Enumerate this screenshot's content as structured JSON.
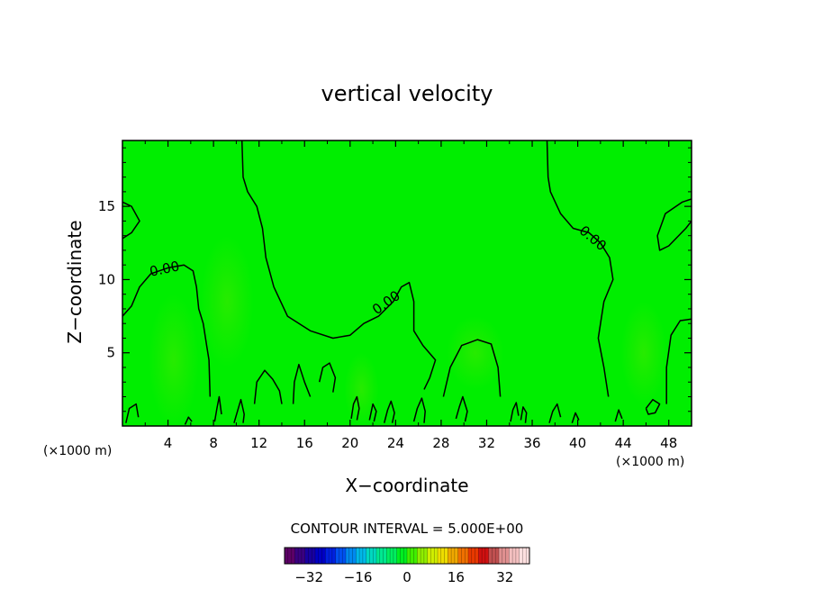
{
  "chart_data": {
    "type": "contour",
    "title": "vertical velocity",
    "xlabel": "X−coordinate",
    "ylabel": "Z−coordinate",
    "x_unit": "(×1000 m)",
    "z_unit": "(×1000 m)",
    "xlim": [
      0,
      50
    ],
    "ylim": [
      0,
      19.5
    ],
    "x_ticks": [
      4,
      8,
      12,
      16,
      20,
      24,
      28,
      32,
      36,
      40,
      44,
      48
    ],
    "x_tick_labels": [
      "4",
      "8",
      "12",
      "16",
      "20",
      "24",
      "28",
      "32",
      "36",
      "40",
      "44",
      "48"
    ],
    "y_ticks": [
      5,
      10,
      15
    ],
    "y_tick_labels": [
      "5",
      "10",
      "15"
    ],
    "field_color": "#00ee00",
    "contour_interval_text": "CONTOUR INTERVAL = 5.000E+00",
    "contour_level_label": "0.00",
    "contour_labels": [
      {
        "text": "0.00",
        "x": 3.7,
        "z": 10.7
      },
      {
        "text": "0.00",
        "x": 23.2,
        "z": 8.4
      },
      {
        "text": "0.00",
        "x": 41.3,
        "z": 12.8
      }
    ],
    "zero_contours": [
      [
        [
          0,
          7.5
        ],
        [
          0.8,
          8.2
        ],
        [
          1.5,
          9.5
        ],
        [
          2.5,
          10.4
        ],
        [
          4.0,
          10.8
        ],
        [
          5.4,
          11.0
        ],
        [
          6.2,
          10.6
        ],
        [
          6.5,
          9.5
        ],
        [
          6.7,
          8.0
        ],
        [
          7.1,
          7.0
        ],
        [
          7.4,
          5.5
        ],
        [
          7.6,
          4.5
        ],
        [
          7.7,
          2.0
        ]
      ],
      [
        [
          10.5,
          19.5
        ],
        [
          10.6,
          17.0
        ],
        [
          11.0,
          16.0
        ],
        [
          11.8,
          15.0
        ],
        [
          12.3,
          13.5
        ],
        [
          12.6,
          11.5
        ],
        [
          13.3,
          9.5
        ],
        [
          14.5,
          7.5
        ],
        [
          16.5,
          6.5
        ],
        [
          18.5,
          6.0
        ],
        [
          20.0,
          6.2
        ],
        [
          21.2,
          7.0
        ],
        [
          22.5,
          7.5
        ],
        [
          23.8,
          8.5
        ],
        [
          24.5,
          9.5
        ],
        [
          25.2,
          9.8
        ],
        [
          25.6,
          8.5
        ],
        [
          25.6,
          6.5
        ],
        [
          26.4,
          5.5
        ],
        [
          27.5,
          4.5
        ],
        [
          27.0,
          3.3
        ],
        [
          26.5,
          2.5
        ]
      ],
      [
        [
          37.3,
          19.5
        ],
        [
          37.4,
          17.0
        ],
        [
          37.6,
          16.0
        ],
        [
          38.5,
          14.5
        ],
        [
          39.6,
          13.5
        ],
        [
          41.0,
          13.2
        ],
        [
          42.0,
          12.5
        ],
        [
          42.8,
          11.5
        ],
        [
          43.1,
          10.0
        ],
        [
          42.3,
          8.5
        ],
        [
          41.8,
          6.0
        ],
        [
          42.3,
          4.0
        ],
        [
          42.7,
          2.0
        ]
      ],
      [
        [
          50,
          15.5
        ],
        [
          49.2,
          15.3
        ],
        [
          47.7,
          14.5
        ],
        [
          47.0,
          13.0
        ],
        [
          47.2,
          12.0
        ],
        [
          48.0,
          12.3
        ],
        [
          49.5,
          13.5
        ],
        [
          50,
          14.0
        ]
      ],
      [
        [
          0,
          15.3
        ],
        [
          0.8,
          15.0
        ],
        [
          1.5,
          14.0
        ],
        [
          0.8,
          13.2
        ],
        [
          0,
          12.8
        ]
      ],
      [
        [
          50,
          7.3
        ],
        [
          49.0,
          7.2
        ],
        [
          48.2,
          6.2
        ],
        [
          47.8,
          4.0
        ],
        [
          47.8,
          1.5
        ]
      ],
      [
        [
          28.2,
          2.0
        ],
        [
          28.8,
          4.0
        ],
        [
          29.8,
          5.5
        ],
        [
          31.2,
          5.9
        ],
        [
          32.4,
          5.6
        ],
        [
          33.0,
          4.0
        ],
        [
          33.2,
          2.0
        ]
      ],
      [
        [
          15.0,
          1.5
        ],
        [
          15.1,
          3.0
        ],
        [
          15.5,
          4.2
        ],
        [
          16.0,
          3.0
        ],
        [
          16.5,
          2.0
        ]
      ],
      [
        [
          17.3,
          3.0
        ],
        [
          17.6,
          4.0
        ],
        [
          18.2,
          4.3
        ],
        [
          18.7,
          3.3
        ],
        [
          18.5,
          2.3
        ]
      ],
      [
        [
          11.6,
          1.5
        ],
        [
          11.8,
          3.0
        ],
        [
          12.5,
          3.8
        ],
        [
          13.2,
          3.2
        ],
        [
          13.8,
          2.4
        ],
        [
          14.0,
          1.5
        ]
      ],
      [
        [
          0.3,
          0.2
        ],
        [
          0.6,
          1.2
        ],
        [
          1.2,
          1.5
        ],
        [
          1.4,
          0.6
        ]
      ],
      [
        [
          8.1,
          0.3
        ],
        [
          8.3,
          1.2
        ],
        [
          8.5,
          2.0
        ],
        [
          8.7,
          0.8
        ]
      ],
      [
        [
          9.8,
          0.2
        ],
        [
          10.1,
          1.0
        ],
        [
          10.4,
          1.8
        ],
        [
          10.7,
          0.8
        ],
        [
          10.6,
          0.2
        ]
      ],
      [
        [
          20.1,
          0.5
        ],
        [
          20.3,
          1.5
        ],
        [
          20.6,
          2.0
        ],
        [
          20.8,
          1.2
        ],
        [
          20.6,
          0.4
        ]
      ],
      [
        [
          21.7,
          0.4
        ],
        [
          22.0,
          1.5
        ],
        [
          22.3,
          1.0
        ],
        [
          22.1,
          0.3
        ]
      ],
      [
        [
          23.0,
          0.2
        ],
        [
          23.3,
          1.1
        ],
        [
          23.6,
          1.7
        ],
        [
          23.9,
          0.9
        ],
        [
          23.7,
          0.2
        ]
      ],
      [
        [
          25.6,
          0.3
        ],
        [
          25.9,
          1.2
        ],
        [
          26.3,
          1.9
        ],
        [
          26.6,
          1.0
        ],
        [
          26.5,
          0.2
        ]
      ],
      [
        [
          29.3,
          0.5
        ],
        [
          29.6,
          1.3
        ],
        [
          29.9,
          2.0
        ],
        [
          30.3,
          1.0
        ],
        [
          30.1,
          0.3
        ]
      ],
      [
        [
          34.1,
          0.3
        ],
        [
          34.3,
          1.1
        ],
        [
          34.6,
          1.6
        ],
        [
          34.8,
          0.7
        ]
      ],
      [
        [
          35.0,
          0.4
        ],
        [
          35.2,
          1.3
        ],
        [
          35.5,
          0.9
        ],
        [
          35.4,
          0.2
        ]
      ],
      [
        [
          37.5,
          0.2
        ],
        [
          37.8,
          1.0
        ],
        [
          38.2,
          1.5
        ],
        [
          38.5,
          0.6
        ]
      ],
      [
        [
          39.5,
          0.2
        ],
        [
          39.8,
          0.9
        ],
        [
          40.1,
          0.4
        ]
      ],
      [
        [
          43.3,
          0.3
        ],
        [
          43.6,
          1.1
        ],
        [
          43.9,
          0.5
        ]
      ],
      [
        [
          46.0,
          1.2
        ],
        [
          46.6,
          1.8
        ],
        [
          47.2,
          1.5
        ],
        [
          46.8,
          0.9
        ],
        [
          46.2,
          0.8
        ],
        [
          46.0,
          1.2
        ]
      ],
      [
        [
          5.5,
          0.1
        ],
        [
          5.8,
          0.6
        ],
        [
          6.1,
          0.3
        ]
      ]
    ],
    "weak_updrafts": [
      {
        "x": 4.5,
        "z": 4.5,
        "rx": 2.2,
        "rz": 4.5
      },
      {
        "x": 9.2,
        "z": 8.5,
        "rx": 2.3,
        "rz": 4.5
      },
      {
        "x": 21.0,
        "z": 2.5,
        "rx": 1.5,
        "rz": 2.5
      },
      {
        "x": 45.8,
        "z": 5.0,
        "rx": 2.0,
        "rz": 3.5
      },
      {
        "x": 31.0,
        "z": 5.0,
        "rx": 2.5,
        "rz": 2.5
      }
    ],
    "colorbar": {
      "min": -40,
      "max": 40,
      "tick_values": [
        -32,
        -16,
        0,
        16,
        32
      ],
      "tick_labels": [
        "−32",
        "−16",
        "0",
        "16",
        "32"
      ],
      "colors": [
        "#5c0066",
        "#3a0080",
        "#1800a0",
        "#0000c4",
        "#0020e0",
        "#0050f0",
        "#0088f0",
        "#00b8e8",
        "#00d8c0",
        "#00e890",
        "#00ee60",
        "#00ee20",
        "#40ee00",
        "#90ee00",
        "#d0ee00",
        "#eedd00",
        "#f0a800",
        "#f07000",
        "#e83800",
        "#d01010",
        "#c05050",
        "#e09090",
        "#f4c0c0",
        "#ffe0e0"
      ]
    }
  }
}
